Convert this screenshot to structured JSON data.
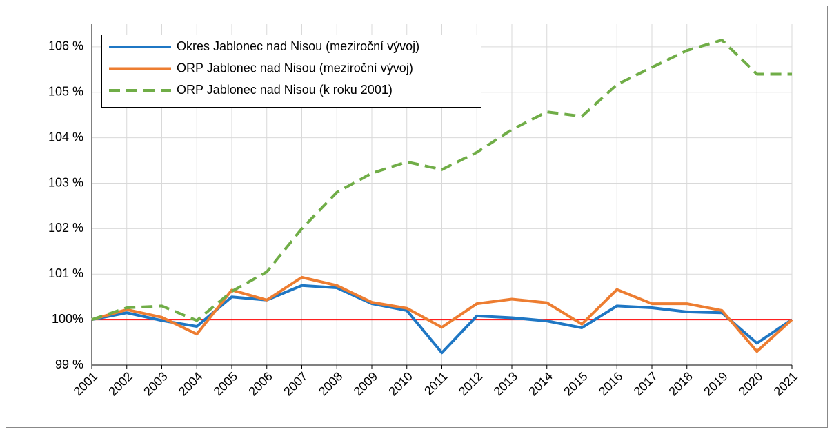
{
  "chart_data": {
    "type": "line",
    "categories": [
      "2001",
      "2002",
      "2003",
      "2004",
      "2005",
      "2006",
      "2007",
      "2008",
      "2009",
      "2010",
      "2011",
      "2012",
      "2013",
      "2014",
      "2015",
      "2016",
      "2017",
      "2018",
      "2019",
      "2020",
      "2021"
    ],
    "series": [
      {
        "name": "Okres Jablonec nad Nisou (meziroční vývoj)",
        "color": "#1f77c4",
        "dash": false,
        "values": [
          100,
          100.15,
          99.98,
          99.85,
          100.5,
          100.43,
          100.75,
          100.7,
          100.35,
          100.2,
          99.27,
          100.08,
          100.04,
          99.97,
          99.82,
          100.3,
          100.26,
          100.17,
          100.15,
          99.48,
          100
        ]
      },
      {
        "name": "ORP Jablonec nad Nisou (meziroční vývoj)",
        "color": "#ed7d31",
        "dash": false,
        "values": [
          100,
          100.22,
          100.05,
          99.68,
          100.65,
          100.43,
          100.93,
          100.75,
          100.38,
          100.25,
          99.83,
          100.35,
          100.45,
          100.37,
          99.9,
          100.66,
          100.35,
          100.35,
          100.2,
          99.3,
          100
        ]
      },
      {
        "name": "ORP Jablonec nad Nisou (k roku 2001)",
        "color": "#70ad47",
        "dash": true,
        "values": [
          100,
          100.26,
          100.3,
          99.98,
          100.62,
          101.05,
          102.0,
          102.8,
          103.22,
          103.47,
          103.3,
          103.68,
          104.18,
          104.57,
          104.47,
          105.17,
          105.55,
          105.92,
          106.15,
          105.4,
          105.4
        ]
      }
    ],
    "ylim": [
      99,
      106.5
    ],
    "yticks": [
      {
        "value": 99,
        "label": "99 %"
      },
      {
        "value": 100,
        "label": "100%"
      },
      {
        "value": 101,
        "label": "101 %"
      },
      {
        "value": 102,
        "label": "102 %"
      },
      {
        "value": 103,
        "label": "103 %"
      },
      {
        "value": 104,
        "label": "104 %"
      },
      {
        "value": 105,
        "label": "105 %"
      },
      {
        "value": 106,
        "label": "106 %"
      }
    ],
    "grid": true,
    "reference_line": {
      "value": 100,
      "color": "#ff0000"
    },
    "legend": "top-left"
  }
}
